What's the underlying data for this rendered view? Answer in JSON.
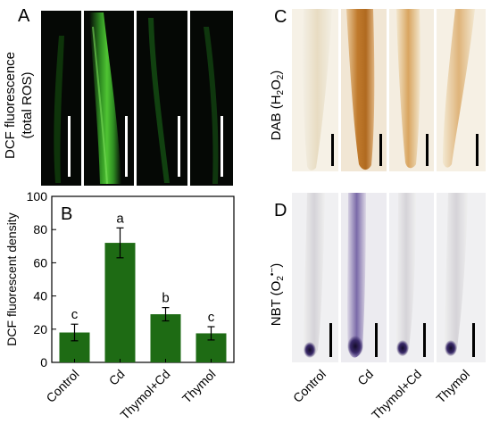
{
  "panels": {
    "A": {
      "letter": "A",
      "ylabel_lines": [
        "DCF fluorescence",
        "(total ROS)"
      ]
    },
    "B": {
      "letter": "B"
    },
    "C": {
      "letter": "C",
      "stain_main": "DAB (H",
      "stain_sub": "2",
      "stain_main2": "O",
      "stain_sub2": "2",
      "stain_end": ")"
    },
    "D": {
      "letter": "D",
      "stain_main": "NBT (O",
      "stain_sub": "2",
      "stain_sup": "•−",
      "stain_end": ")"
    }
  },
  "colors": {
    "bar": "#1e6b14",
    "fluor_bg": "#050805",
    "fluor_glow": "#3fae2a",
    "dab_stain": "#b8741f",
    "nbt_stain": "#3a2a6a"
  },
  "x_labels": [
    "Control",
    "Cd",
    "Thymol+Cd",
    "Thymol"
  ],
  "chart_data": {
    "type": "bar",
    "categories": [
      "Control",
      "Cd",
      "Thymol+Cd",
      "Thymol"
    ],
    "values": [
      18,
      72,
      29,
      17.5
    ],
    "errors": [
      5,
      9,
      4,
      4
    ],
    "letters": [
      "c",
      "a",
      "b",
      "c"
    ],
    "ylabel": "DCF fluorescent density",
    "ylim": [
      0,
      100
    ],
    "yticks": [
      0,
      20,
      40,
      60,
      80,
      100
    ],
    "grid": false
  }
}
